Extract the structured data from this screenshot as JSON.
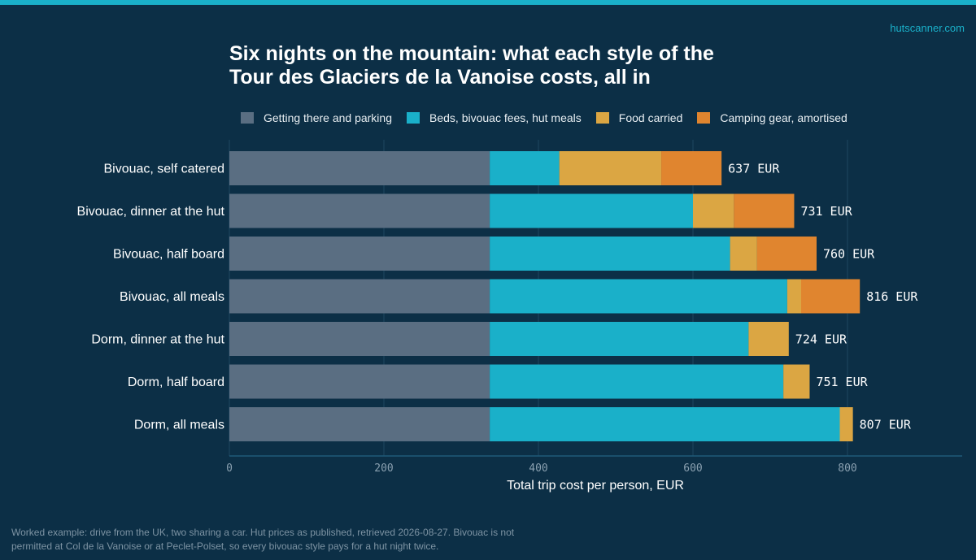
{
  "brand": "hutscanner.com",
  "title_lines": [
    "Six nights on the mountain: what each style of the",
    "Tour des Glaciers de la Vanoise costs, all in"
  ],
  "legend": [
    {
      "label": "Getting there and parking",
      "color": "#5a6e82"
    },
    {
      "label": "Beds, bivouac fees, hut meals",
      "color": "#1ab0c9"
    },
    {
      "label": "Food carried",
      "color": "#dba643"
    },
    {
      "label": "Camping gear, amortised",
      "color": "#e0852f"
    }
  ],
  "footnote_lines": [
    "Worked example: drive from the UK, two sharing a car. Hut prices as published, retrieved 2026-08-27. Bivouac is not",
    "permitted at Col de la Vanoise or at Peclet-Polset, so every bivouac style pays for a hut night twice."
  ],
  "chart_data": {
    "type": "bar",
    "orientation": "horizontal",
    "stacked": true,
    "title": "Six nights on the mountain: what each style of the Tour des Glaciers de la Vanoise costs, all in",
    "xlabel": "Total trip cost per person, EUR",
    "ylabel": "",
    "xlim": [
      0,
      950
    ],
    "xticks": [
      0,
      200,
      400,
      600,
      800
    ],
    "grid": "vertical",
    "legend_position": "top",
    "categories": [
      "Bivouac, self catered",
      "Bivouac, dinner at the hut",
      "Bivouac, half board",
      "Bivouac, all meals",
      "Dorm, dinner at the hut",
      "Dorm, half board",
      "Dorm, all meals"
    ],
    "series": [
      {
        "name": "Getting there and parking",
        "color": "#5a6e82",
        "values": [
          337,
          337,
          337,
          337,
          337,
          337,
          337
        ]
      },
      {
        "name": "Beds, bivouac fees, hut meals",
        "color": "#1ab0c9",
        "values": [
          90,
          263,
          311,
          385,
          335,
          380,
          453
        ]
      },
      {
        "name": "Food carried",
        "color": "#dba643",
        "values": [
          132,
          53,
          35,
          18,
          52,
          34,
          17
        ]
      },
      {
        "name": "Camping gear, amortised",
        "color": "#e0852f",
        "values": [
          78,
          78,
          77,
          76,
          0,
          0,
          0
        ]
      }
    ],
    "totals": [
      637,
      731,
      760,
      816,
      724,
      751,
      807
    ],
    "total_labels": [
      "637 EUR",
      "731 EUR",
      "760 EUR",
      "816 EUR",
      "724 EUR",
      "751 EUR",
      "807 EUR"
    ]
  }
}
